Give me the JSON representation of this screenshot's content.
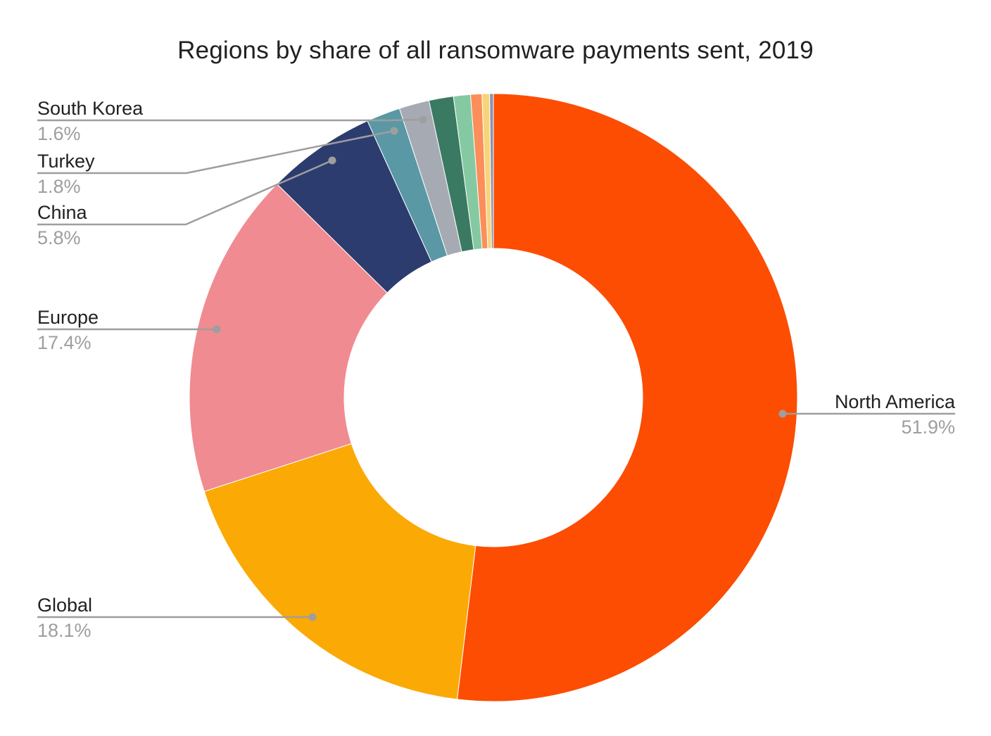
{
  "chart_data": {
    "type": "pie",
    "subtype": "donut",
    "title": "Regions by share of all ransomware payments sent, 2019",
    "direction": "clockwise",
    "start_angle_deg": 0,
    "hole_ratio": 0.49,
    "legend_position": "none",
    "labels_shown_as": "callouts-with-leader-lines",
    "slices": [
      {
        "label": "North America",
        "pct": 51.9,
        "pct_label": "51.9%",
        "color": "#FC4D03"
      },
      {
        "label": "Global",
        "pct": 18.1,
        "pct_label": "18.1%",
        "color": "#FBA905"
      },
      {
        "label": "Europe",
        "pct": 17.4,
        "pct_label": "17.4%",
        "color": "#F08B92"
      },
      {
        "label": "China",
        "pct": 5.8,
        "pct_label": "5.8%",
        "color": "#2C3C6E"
      },
      {
        "label": "Turkey",
        "pct": 1.8,
        "pct_label": "1.8%",
        "color": "#5A98A5"
      },
      {
        "label": "South Korea",
        "pct": 1.6,
        "pct_label": "1.6%",
        "color": "#A6ABB3"
      },
      {
        "label": "",
        "pct": 1.3,
        "pct_label": "",
        "color": "#3A7A62",
        "estimated": true
      },
      {
        "label": "",
        "pct": 0.9,
        "pct_label": "",
        "color": "#85C9A2",
        "estimated": true
      },
      {
        "label": "",
        "pct": 0.6,
        "pct_label": "",
        "color": "#FB8E5A",
        "estimated": true
      },
      {
        "label": "",
        "pct": 0.4,
        "pct_label": "",
        "color": "#F8D478",
        "estimated": true
      },
      {
        "label": "",
        "pct": 0.2,
        "pct_label": "",
        "color": "#8893B5",
        "estimated": true
      }
    ]
  },
  "colors": {
    "background": "#FFFFFF",
    "title_text": "#212121",
    "callout_name_text": "#212121",
    "callout_value_text": "#9E9E9E",
    "leader_line": "#9E9E9E",
    "slice_separator": "#FFFFFF"
  }
}
